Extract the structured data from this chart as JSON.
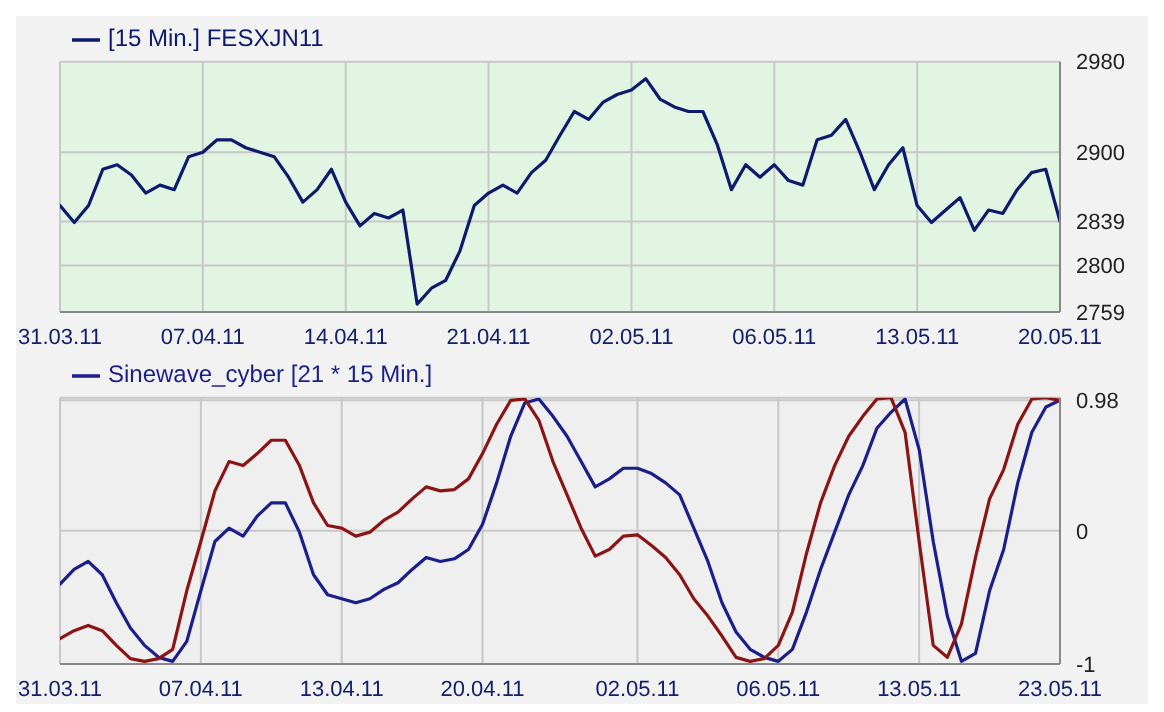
{
  "chart_data": [
    {
      "type": "line",
      "categories": [
        "31.03.11",
        null,
        null,
        null,
        null,
        null,
        null,
        null,
        null,
        null,
        "07.04.11",
        null,
        null,
        null,
        null,
        null,
        null,
        null,
        null,
        null,
        "14.04.11",
        null,
        null,
        null,
        null,
        null,
        null,
        null,
        null,
        null,
        "21.04.11",
        null,
        null,
        null,
        null,
        null,
        null,
        null,
        null,
        null,
        "02.05.11",
        null,
        null,
        null,
        null,
        null,
        null,
        null,
        null,
        null,
        "06.05.11",
        null,
        null,
        null,
        null,
        null,
        null,
        null,
        null,
        null,
        "13.05.11",
        null,
        null,
        null,
        null,
        null,
        null,
        null,
        null,
        null,
        "20.05.11"
      ],
      "series": [
        {
          "name": "[15 Min.] FESXJN11",
          "color": "#0d1a6e",
          "values": [
            2853,
            2838,
            2853,
            2885,
            2889,
            2880,
            2864,
            2871,
            2867,
            2896,
            2900,
            2911,
            2911,
            2904,
            2900,
            2896,
            2878,
            2856,
            2867,
            2885,
            2856,
            2835,
            2846,
            2842,
            2849,
            2766,
            2780,
            2787,
            2813,
            2853,
            2864,
            2871,
            2864,
            2882,
            2893,
            2915,
            2936,
            2929,
            2944,
            2951,
            2955,
            2965,
            2947,
            2940,
            2936,
            2936,
            2907,
            2867,
            2889,
            2878,
            2889,
            2875,
            2871,
            2911,
            2915,
            2929,
            2900,
            2867,
            2889,
            2904,
            2853,
            2838,
            2849,
            2860,
            2831,
            2849,
            2846,
            2867,
            2882,
            2885,
            2839
          ]
        }
      ],
      "ylim": [
        2759,
        2980
      ],
      "yticks": [
        2759,
        2800,
        2839,
        2900,
        2980
      ],
      "grid": true,
      "legend": "top left"
    },
    {
      "type": "line",
      "categories": [
        "31.03.11",
        null,
        null,
        null,
        null,
        null,
        null,
        null,
        null,
        null,
        "07.04.11",
        null,
        null,
        null,
        null,
        null,
        null,
        null,
        null,
        null,
        "13.04.11",
        null,
        null,
        null,
        null,
        null,
        null,
        null,
        null,
        null,
        "20.04.11",
        null,
        null,
        null,
        null,
        null,
        null,
        null,
        null,
        null,
        null,
        "02.05.11",
        null,
        null,
        null,
        null,
        null,
        null,
        null,
        null,
        null,
        "06.05.11",
        null,
        null,
        null,
        null,
        null,
        null,
        null,
        null,
        null,
        "13.05.11",
        null,
        null,
        null,
        null,
        null,
        null,
        null,
        null,
        null,
        "23.05.11"
      ],
      "series": [
        {
          "name": "Sinewave_cyber [21 * 15 Min.]",
          "color": "#1a1f8c",
          "values": [
            -0.4,
            -0.29,
            -0.23,
            -0.33,
            -0.54,
            -0.73,
            -0.86,
            -0.95,
            -0.98,
            -0.83,
            -0.45,
            -0.08,
            0.02,
            -0.04,
            0.11,
            0.21,
            0.21,
            -0.01,
            -0.33,
            -0.48,
            -0.51,
            -0.54,
            -0.51,
            -0.44,
            -0.39,
            -0.29,
            -0.2,
            -0.23,
            -0.21,
            -0.14,
            0.05,
            0.36,
            0.71,
            0.96,
            0.99,
            0.86,
            0.71,
            0.52,
            0.33,
            0.39,
            0.47,
            0.47,
            0.43,
            0.36,
            0.27,
            0.02,
            -0.23,
            -0.54,
            -0.76,
            -0.89,
            -0.95,
            -0.98,
            -0.89,
            -0.61,
            -0.29,
            -0.01,
            0.27,
            0.49,
            0.77,
            0.89,
            0.99,
            0.61,
            -0.08,
            -0.64,
            -0.98,
            -0.92,
            -0.45,
            -0.14,
            0.36,
            0.74,
            0.93,
            0.98
          ]
        },
        {
          "color": "#8b1414",
          "values": [
            -0.81,
            -0.75,
            -0.71,
            -0.75,
            -0.86,
            -0.96,
            -0.98,
            -0.96,
            -0.89,
            -0.45,
            -0.08,
            0.3,
            0.52,
            0.49,
            0.58,
            0.68,
            0.68,
            0.49,
            0.21,
            0.04,
            0.02,
            -0.04,
            -0.01,
            0.08,
            0.14,
            0.24,
            0.33,
            0.3,
            0.31,
            0.39,
            0.58,
            0.8,
            0.98,
            0.99,
            0.83,
            0.52,
            0.27,
            0.02,
            -0.19,
            -0.14,
            -0.04,
            -0.03,
            -0.11,
            -0.2,
            -0.33,
            -0.51,
            -0.64,
            -0.79,
            -0.95,
            -0.98,
            -0.96,
            -0.86,
            -0.61,
            -0.17,
            0.21,
            0.49,
            0.71,
            0.86,
            0.99,
            1.0,
            0.74,
            -0.08,
            -0.86,
            -0.95,
            -0.7,
            -0.2,
            0.24,
            0.46,
            0.8,
            0.99,
            1.0,
            0.98
          ]
        }
      ],
      "ylim": [
        -1,
        1
      ],
      "yticks": [
        -1,
        0,
        0.98
      ],
      "grid": true,
      "legend": "top left"
    }
  ]
}
